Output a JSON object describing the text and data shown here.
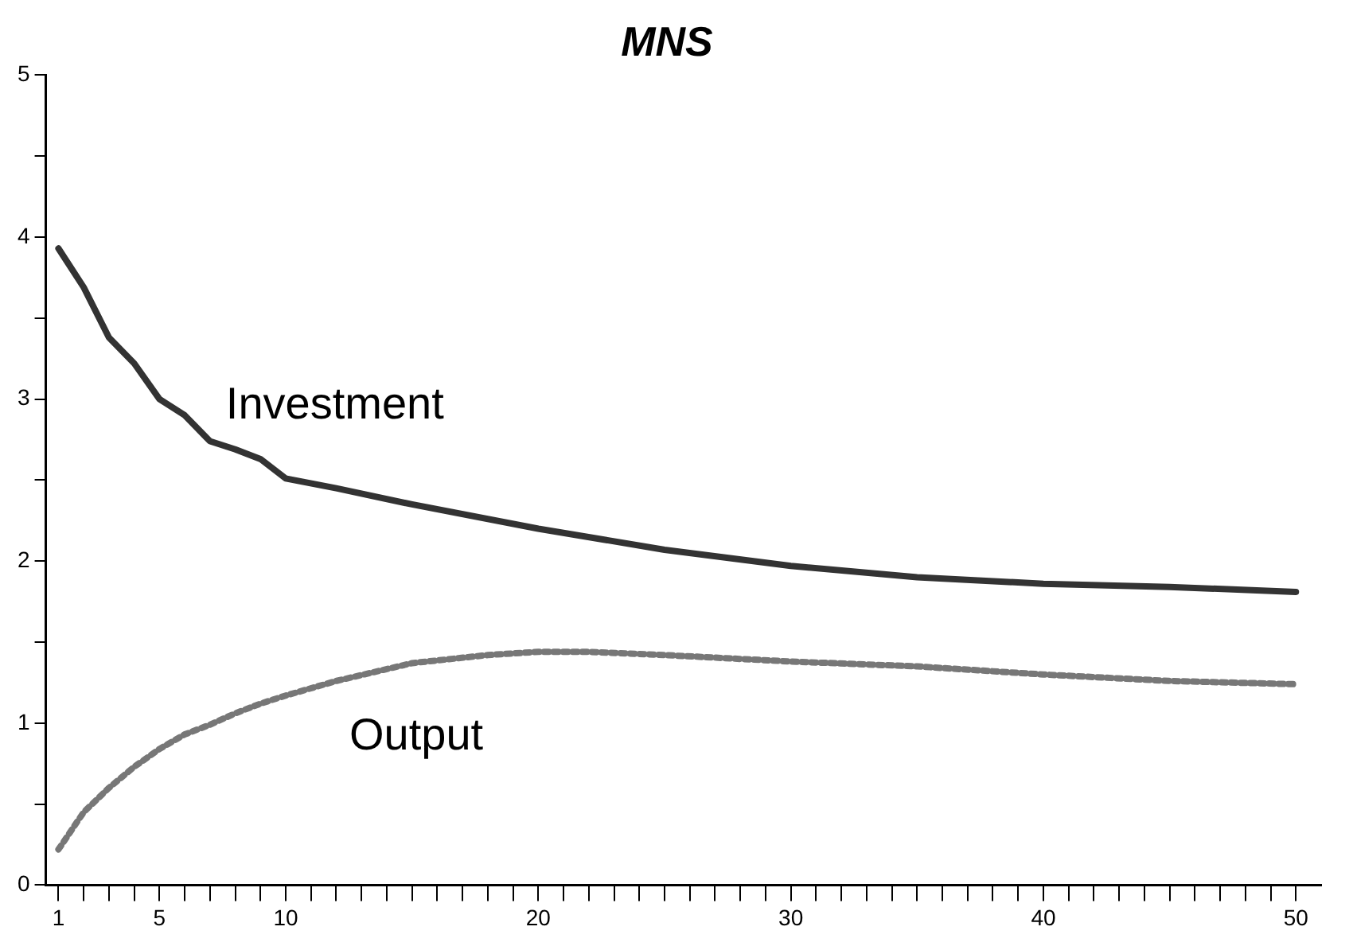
{
  "chart_data": {
    "type": "line",
    "title": "MNS",
    "xlim": [
      0.5,
      51
    ],
    "ylim": [
      0,
      5
    ],
    "xticks": [
      1,
      {
        "value": 2,
        "label": null
      },
      {
        "value": 3,
        "label": null
      },
      {
        "value": 4,
        "label": null
      },
      5,
      {
        "value": 6,
        "label": null
      },
      {
        "value": 7,
        "label": null
      },
      {
        "value": 8,
        "label": null
      },
      {
        "value": 9,
        "label": null
      },
      10,
      {
        "value": 11,
        "label": null
      },
      {
        "value": 12,
        "label": null
      },
      {
        "value": 13,
        "label": null
      },
      {
        "value": 14,
        "label": null
      },
      {
        "value": 15,
        "label": null
      },
      {
        "value": 16,
        "label": null
      },
      {
        "value": 17,
        "label": null
      },
      {
        "value": 18,
        "label": null
      },
      {
        "value": 19,
        "label": null
      },
      20,
      {
        "value": 21,
        "label": null
      },
      {
        "value": 22,
        "label": null
      },
      {
        "value": 23,
        "label": null
      },
      {
        "value": 24,
        "label": null
      },
      {
        "value": 25,
        "label": null
      },
      {
        "value": 26,
        "label": null
      },
      {
        "value": 27,
        "label": null
      },
      {
        "value": 28,
        "label": null
      },
      {
        "value": 29,
        "label": null
      },
      30,
      {
        "value": 31,
        "label": null
      },
      {
        "value": 32,
        "label": null
      },
      {
        "value": 33,
        "label": null
      },
      {
        "value": 34,
        "label": null
      },
      {
        "value": 35,
        "label": null
      },
      {
        "value": 36,
        "label": null
      },
      {
        "value": 37,
        "label": null
      },
      {
        "value": 38,
        "label": null
      },
      {
        "value": 39,
        "label": null
      },
      40,
      {
        "value": 41,
        "label": null
      },
      {
        "value": 42,
        "label": null
      },
      {
        "value": 43,
        "label": null
      },
      {
        "value": 44,
        "label": null
      },
      {
        "value": 45,
        "label": null
      },
      {
        "value": 46,
        "label": null
      },
      {
        "value": 47,
        "label": null
      },
      {
        "value": 48,
        "label": null
      },
      {
        "value": 49,
        "label": null
      },
      50
    ],
    "yticks": [
      0,
      {
        "value": 0.5,
        "label": null
      },
      1,
      {
        "value": 1.5,
        "label": null
      },
      2,
      {
        "value": 2.5,
        "label": null
      },
      3,
      {
        "value": 3.5,
        "label": null
      },
      4,
      {
        "value": 4.5,
        "label": null
      },
      5
    ],
    "grid": false,
    "legend": false,
    "marker": "none",
    "series": [
      {
        "name": "Investment",
        "color": "#333333",
        "line_style": "solid",
        "x": [
          1,
          2,
          3,
          4,
          5,
          6,
          7,
          8,
          9,
          10,
          12,
          15,
          20,
          25,
          30,
          35,
          40,
          45,
          50
        ],
        "values": [
          3.93,
          3.69,
          3.38,
          3.22,
          3.0,
          2.9,
          2.74,
          2.69,
          2.63,
          2.51,
          2.45,
          2.35,
          2.2,
          2.07,
          1.97,
          1.9,
          1.86,
          1.84,
          1.81
        ]
      },
      {
        "name": "Output",
        "color": "#777777",
        "line_style": "dotted",
        "x": [
          1,
          2,
          3,
          4,
          5,
          6,
          7,
          8,
          9,
          10,
          12,
          15,
          18,
          20,
          22,
          25,
          30,
          35,
          40,
          45,
          50
        ],
        "values": [
          0.22,
          0.45,
          0.6,
          0.73,
          0.84,
          0.93,
          0.99,
          1.06,
          1.12,
          1.17,
          1.26,
          1.37,
          1.42,
          1.44,
          1.44,
          1.42,
          1.38,
          1.35,
          1.3,
          1.26,
          1.24
        ]
      }
    ]
  }
}
